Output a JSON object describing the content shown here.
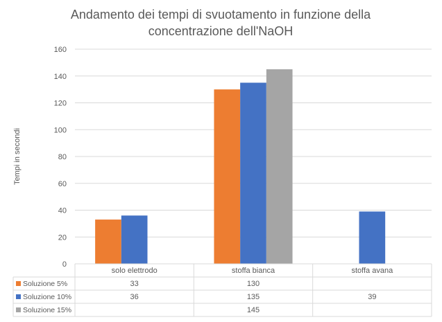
{
  "chart_data": {
    "type": "bar",
    "title": "Andamento dei tempi di svuotamento in funzione della concentrazione dell'NaOH",
    "title_lines": [
      "Andamento dei tempi di svuotamento in funzione della",
      "concentrazione dell'NaOH"
    ],
    "ylabel": "Tempi  in secondi",
    "xlabel": "",
    "ylim": [
      0,
      160
    ],
    "yticks": [
      0,
      20,
      40,
      60,
      80,
      100,
      120,
      140,
      160
    ],
    "grid": true,
    "legend": "data-table",
    "categories": [
      "solo elettrodo",
      "stoffa bianca",
      "stoffa avana"
    ],
    "series": [
      {
        "name": "Soluzione 5%",
        "color": "#ED7D31",
        "values": [
          33,
          130,
          null
        ]
      },
      {
        "name": "Soluzione 10%",
        "color": "#4472C4",
        "values": [
          36,
          135,
          39
        ]
      },
      {
        "name": "Soluzione 15%",
        "color": "#A5A5A5",
        "values": [
          null,
          145,
          null
        ]
      }
    ]
  }
}
